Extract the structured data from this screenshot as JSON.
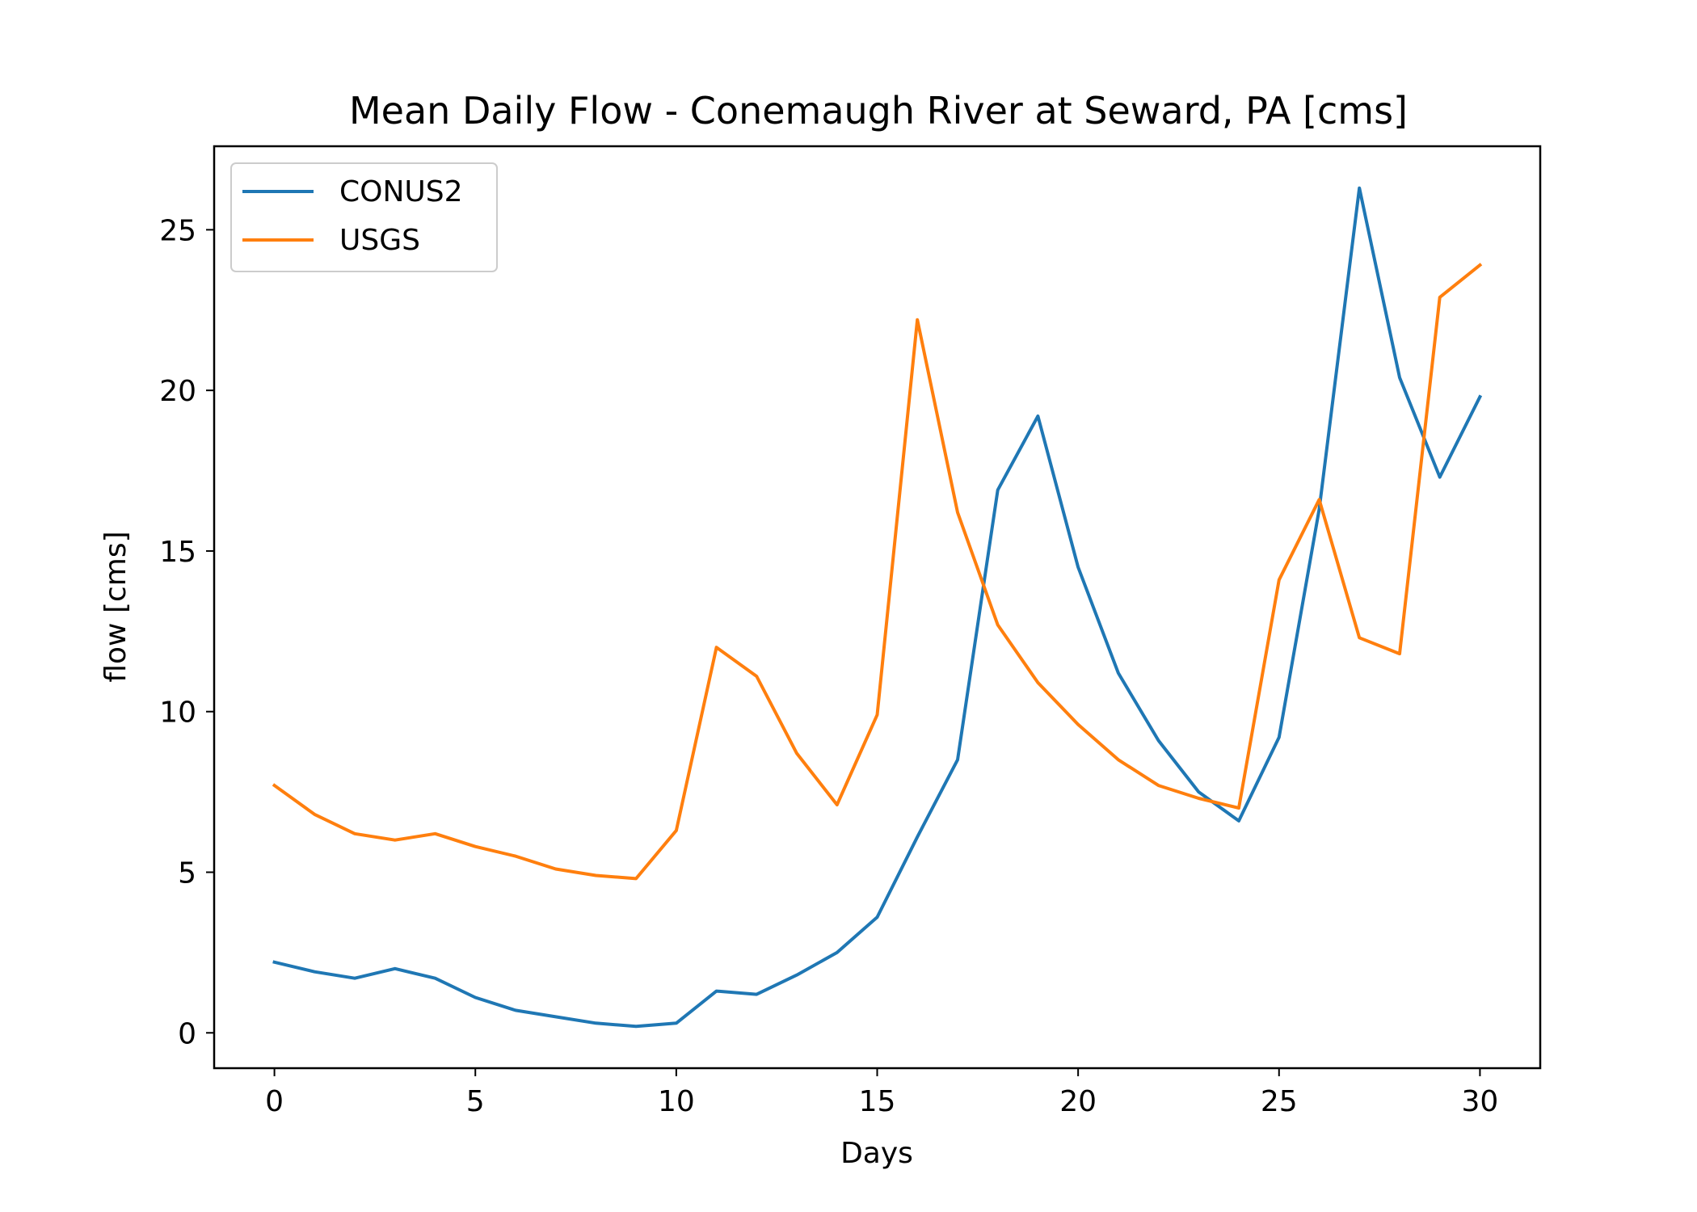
{
  "chart_data": {
    "type": "line",
    "title": "Mean Daily Flow - Conemaugh River at Seward, PA [cms]",
    "xlabel": "Days",
    "ylabel": "flow [cms]",
    "xlim": [
      -1.5,
      31.5
    ],
    "ylim": [
      -1.1,
      27.6
    ],
    "xticks": [
      0,
      5,
      10,
      15,
      20,
      25,
      30
    ],
    "yticks": [
      0,
      5,
      10,
      15,
      20,
      25
    ],
    "grid": false,
    "legend_position": "upper-left",
    "x": [
      0,
      1,
      2,
      3,
      4,
      5,
      6,
      7,
      8,
      9,
      10,
      11,
      12,
      13,
      14,
      15,
      16,
      17,
      18,
      19,
      20,
      21,
      22,
      23,
      24,
      25,
      26,
      27,
      28,
      29,
      30
    ],
    "series": [
      {
        "name": "CONUS2",
        "color": "#1f77b4",
        "values": [
          2.2,
          1.9,
          1.7,
          2.0,
          1.7,
          1.1,
          0.7,
          0.5,
          0.3,
          0.2,
          0.3,
          1.3,
          1.2,
          1.8,
          2.5,
          3.6,
          6.1,
          8.5,
          16.9,
          19.2,
          14.5,
          11.2,
          9.1,
          7.5,
          6.6,
          9.2,
          16.3,
          26.3,
          20.4,
          17.3,
          19.8
        ]
      },
      {
        "name": "USGS",
        "color": "#ff7f0e",
        "values": [
          7.7,
          6.8,
          6.2,
          6.0,
          6.2,
          5.8,
          5.5,
          5.1,
          4.9,
          4.8,
          6.3,
          12.0,
          11.1,
          8.7,
          7.1,
          9.9,
          22.2,
          16.2,
          12.7,
          10.9,
          9.6,
          8.5,
          7.7,
          7.3,
          7.0,
          14.1,
          16.6,
          12.3,
          11.8,
          22.9,
          23.9
        ]
      }
    ]
  }
}
